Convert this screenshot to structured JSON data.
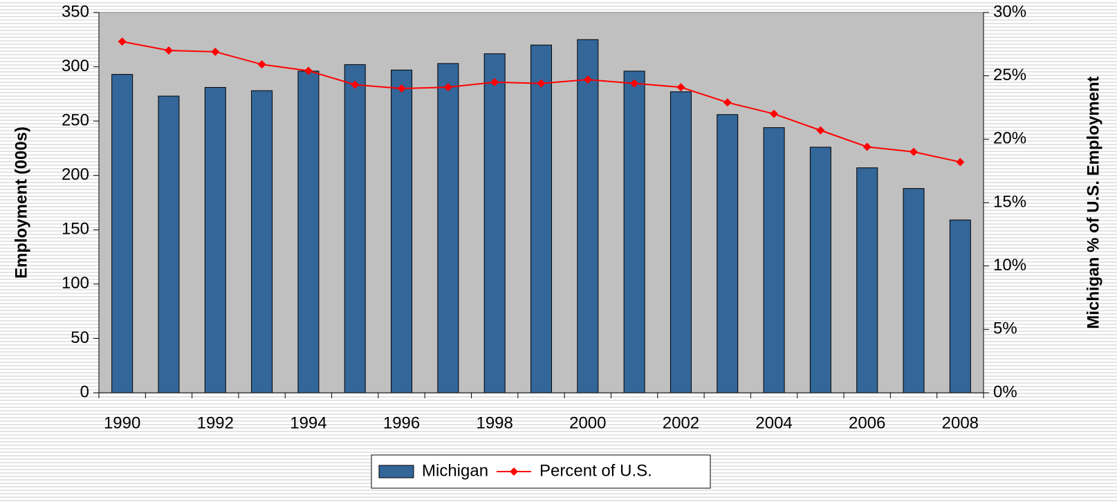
{
  "chart_data": {
    "type": "bar",
    "categories": [
      1990,
      null,
      1992,
      null,
      1994,
      null,
      1996,
      null,
      1998,
      null,
      2000,
      null,
      2002,
      null,
      2004,
      null,
      2006,
      null,
      2008
    ],
    "series": [
      {
        "name": "Michigan",
        "color": "#336699",
        "axis": "y",
        "type": "bar",
        "values": [
          293,
          273,
          281,
          278,
          296,
          302,
          297,
          303,
          312,
          320,
          325,
          296,
          277,
          256,
          244,
          226,
          207,
          188,
          159
        ]
      },
      {
        "name": "Percent of U.S.",
        "color": "#ff0000",
        "axis": "y2",
        "type": "line",
        "values": [
          27.7,
          27.0,
          26.9,
          25.9,
          25.4,
          24.3,
          24.0,
          24.1,
          24.5,
          24.4,
          24.7,
          24.4,
          24.1,
          22.9,
          22.0,
          20.7,
          19.4,
          19.0,
          18.2
        ]
      }
    ],
    "y_label": "Employment (000s)",
    "y2_label": "Michigan % of U.S. Employment",
    "ylim": [
      0,
      350
    ],
    "yticks": [
      0,
      50,
      100,
      150,
      200,
      250,
      300,
      350
    ],
    "y2lim": [
      0,
      30
    ],
    "y2ticks": [
      {
        "value": 0,
        "label": "0%"
      },
      {
        "value": 5,
        "label": "5%"
      },
      {
        "value": 10,
        "label": "10%"
      },
      {
        "value": 15,
        "label": "15%"
      },
      {
        "value": 20,
        "label": "20%"
      },
      {
        "value": 25,
        "label": "25%"
      },
      {
        "value": 30,
        "label": "30%"
      }
    ],
    "legend": "bottom"
  }
}
